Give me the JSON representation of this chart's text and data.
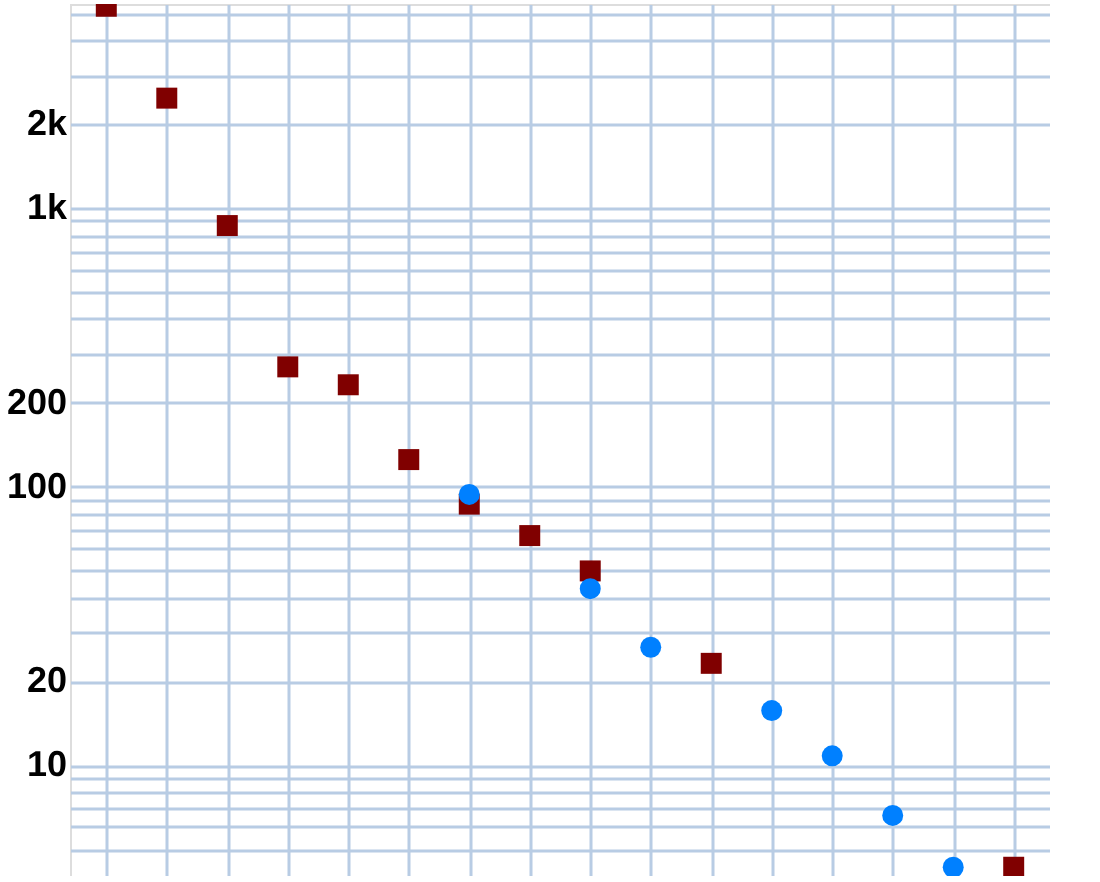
{
  "chart_data": {
    "type": "scatter",
    "log": "y",
    "grid": true,
    "tick_labels": "y",
    "categories": [
      null,
      null,
      null,
      null,
      null,
      null,
      null,
      null,
      null,
      null,
      null,
      null,
      null,
      null,
      null,
      null
    ],
    "ylim": [
      4,
      5400
    ],
    "yticks": [
      {
        "value": 5,
        "label": null
      },
      {
        "value": 6,
        "label": null
      },
      {
        "value": 7,
        "label": null
      },
      {
        "value": 8,
        "label": null
      },
      {
        "value": 9,
        "label": null
      },
      10,
      20,
      {
        "value": 30,
        "label": null
      },
      {
        "value": 40,
        "label": null
      },
      {
        "value": 50,
        "label": null
      },
      {
        "value": 60,
        "label": null
      },
      {
        "value": 70,
        "label": null
      },
      {
        "value": 80,
        "label": null
      },
      {
        "value": 90,
        "label": null
      },
      100,
      200,
      {
        "value": 300,
        "label": null
      },
      {
        "value": 400,
        "label": null
      },
      {
        "value": 500,
        "label": null
      },
      {
        "value": 600,
        "label": null
      },
      {
        "value": 700,
        "label": null
      },
      {
        "value": 800,
        "label": null
      },
      {
        "value": 900,
        "label": null
      },
      {
        "value": 1000,
        "label": "1k"
      },
      {
        "value": 2000,
        "label": "2k"
      },
      {
        "value": 3000,
        "label": null
      },
      {
        "value": 4000,
        "label": null
      },
      {
        "value": 5000,
        "label": null
      }
    ],
    "series": [
      {
        "color": "#800000",
        "marker": "square",
        "values": [
          5300,
          2480,
          865,
          269,
          232,
          125,
          86.5,
          66.7,
          49.8,
          null,
          23.2,
          null,
          null,
          null,
          null,
          4.3
        ]
      },
      {
        "color": "#0080ff",
        "marker": "circle",
        "values": [
          null,
          null,
          null,
          null,
          null,
          null,
          93.7,
          null,
          43,
          26.5,
          null,
          15.7,
          10.8,
          6.6,
          4.3,
          null
        ]
      }
    ]
  }
}
